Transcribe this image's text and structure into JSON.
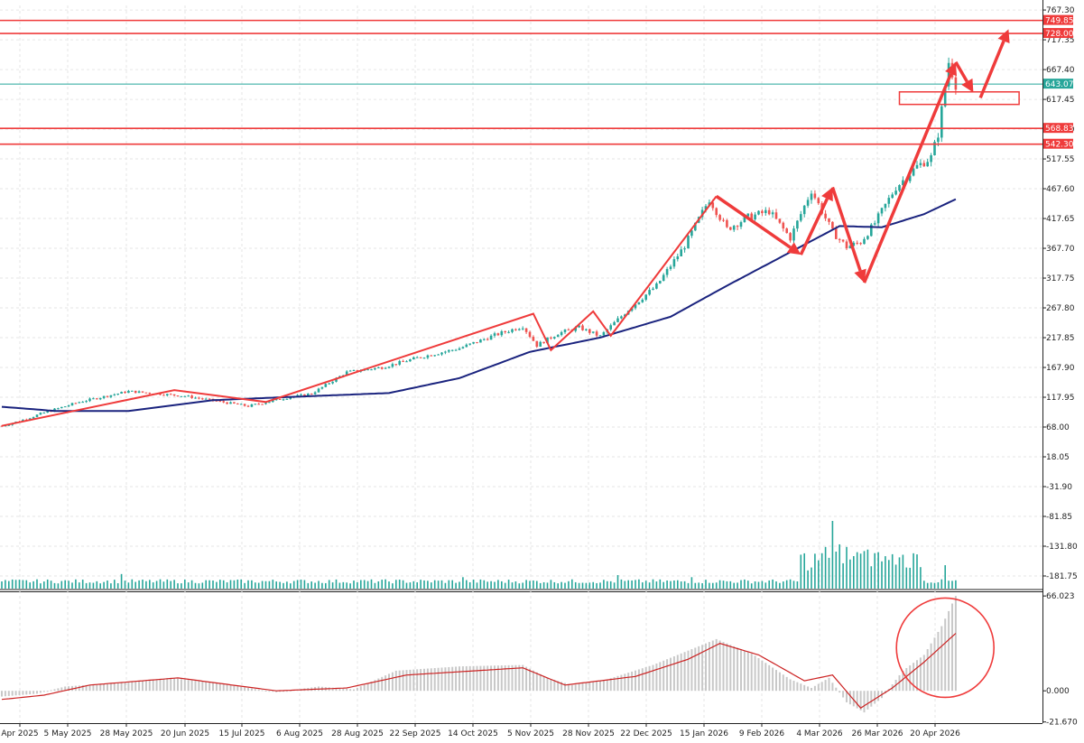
{
  "colors": {
    "background": "#ffffff",
    "grid": "#e6e6e6",
    "candle_up": "#26a69a",
    "candle_down": "#ef5350",
    "moving_average": "#1a237e",
    "annotation": "#ef3b3b",
    "price_line": "#26a69a",
    "volume": "#26a69a",
    "macd_hist": "#c8c8c8",
    "macd_signal": "#cc2222",
    "axis_text": "#222222"
  },
  "chart_data": [
    {
      "type": "candlestick",
      "title": "",
      "xlabel": "",
      "ylabel": "",
      "ylim": [
        -206,
        775
      ],
      "grid": true,
      "y_ticks": [
        "767.30",
        "717.35",
        "667.40",
        "617.45",
        "567.50",
        "517.55",
        "467.60",
        "417.65",
        "367.70",
        "317.75",
        "267.80",
        "217.85",
        "167.90",
        "117.95",
        "68.00",
        "18.05",
        "-31.90",
        "-81.85",
        "-131.80",
        "-181.75"
      ],
      "x_ticks": [
        "Apr 2025",
        "5 May 2025",
        "28 May 2025",
        "20 Jun 2025",
        "15 Jul 2025",
        "6 Aug 2025",
        "28 Aug 2025",
        "22 Sep 2025",
        "14 Oct 2025",
        "5 Nov 2025",
        "28 Nov 2025",
        "22 Dec 2025",
        "15 Jan 2026",
        "9 Feb 2026",
        "4 Mar 2026",
        "26 Mar 2026",
        "20 Apr 2026"
      ],
      "price_anchors": [
        {
          "i": 0,
          "v": 70
        },
        {
          "i": 5,
          "v": 78
        },
        {
          "i": 12,
          "v": 92
        },
        {
          "i": 22,
          "v": 110
        },
        {
          "i": 36,
          "v": 128
        },
        {
          "i": 52,
          "v": 120
        },
        {
          "i": 70,
          "v": 103
        },
        {
          "i": 80,
          "v": 116
        },
        {
          "i": 88,
          "v": 124
        },
        {
          "i": 98,
          "v": 160
        },
        {
          "i": 108,
          "v": 168
        },
        {
          "i": 118,
          "v": 184
        },
        {
          "i": 130,
          "v": 200
        },
        {
          "i": 140,
          "v": 222
        },
        {
          "i": 148,
          "v": 237
        },
        {
          "i": 152,
          "v": 205
        },
        {
          "i": 158,
          "v": 225
        },
        {
          "i": 164,
          "v": 235
        },
        {
          "i": 170,
          "v": 220
        },
        {
          "i": 178,
          "v": 265
        },
        {
          "i": 186,
          "v": 305
        },
        {
          "i": 194,
          "v": 372
        },
        {
          "i": 201,
          "v": 450
        },
        {
          "i": 206,
          "v": 400
        },
        {
          "i": 212,
          "v": 420
        },
        {
          "i": 218,
          "v": 430
        },
        {
          "i": 224,
          "v": 385
        },
        {
          "i": 230,
          "v": 465
        },
        {
          "i": 236,
          "v": 395
        },
        {
          "i": 240,
          "v": 370
        },
        {
          "i": 244,
          "v": 378
        },
        {
          "i": 248,
          "v": 410
        },
        {
          "i": 254,
          "v": 470
        },
        {
          "i": 260,
          "v": 505
        },
        {
          "i": 264,
          "v": 520
        },
        {
          "i": 266,
          "v": 560
        },
        {
          "i": 268,
          "v": 640
        },
        {
          "i": 269,
          "v": 680
        },
        {
          "i": 271,
          "v": 643
        }
      ],
      "moving_average": [
        {
          "i": 0,
          "v": 102
        },
        {
          "i": 15,
          "v": 95
        },
        {
          "i": 36,
          "v": 95
        },
        {
          "i": 60,
          "v": 113
        },
        {
          "i": 80,
          "v": 118
        },
        {
          "i": 110,
          "v": 125
        },
        {
          "i": 130,
          "v": 150
        },
        {
          "i": 150,
          "v": 194
        },
        {
          "i": 170,
          "v": 218
        },
        {
          "i": 190,
          "v": 253
        },
        {
          "i": 206,
          "v": 305
        },
        {
          "i": 222,
          "v": 355
        },
        {
          "i": 238,
          "v": 405
        },
        {
          "i": 250,
          "v": 403
        },
        {
          "i": 262,
          "v": 425
        },
        {
          "i": 271,
          "v": 450
        }
      ],
      "horizontal_levels": [
        {
          "label": "749.85",
          "value": 749.85,
          "color": "#ef3b3b"
        },
        {
          "label": "728.00",
          "value": 728.0,
          "color": "#ef3b3b"
        },
        {
          "label": "643.07",
          "value": 643.07,
          "color": "#26a69a"
        },
        {
          "label": "568.83",
          "value": 568.83,
          "color": "#ef3b3b"
        },
        {
          "label": "542.30",
          "value": 542.3,
          "color": "#ef3b3b"
        }
      ],
      "trend_lines": [
        [
          {
            "i": 0,
            "v": 70
          },
          {
            "i": 49,
            "v": 130
          },
          {
            "i": 75,
            "v": 110
          },
          {
            "i": 151,
            "v": 258
          },
          {
            "i": 156,
            "v": 197
          },
          {
            "i": 168,
            "v": 262
          },
          {
            "i": 173,
            "v": 221
          },
          {
            "i": 203,
            "v": 455
          }
        ]
      ],
      "arrows": [
        [
          {
            "i": 203,
            "v": 455
          },
          {
            "i": 227,
            "v": 357
          }
        ],
        [
          {
            "i": 227,
            "v": 357
          },
          {
            "i": 236,
            "v": 470
          }
        ],
        [
          {
            "i": 236,
            "v": 470
          },
          {
            "i": 245,
            "v": 310
          }
        ],
        [
          {
            "i": 245,
            "v": 310
          },
          {
            "i": 271,
            "v": 680
          }
        ],
        [
          {
            "i": 271,
            "v": 680
          },
          {
            "i": 276,
            "v": 629
          }
        ],
        [
          {
            "i": 278,
            "v": 620
          },
          {
            "i": 286,
            "v": 735
          }
        ]
      ],
      "zone": {
        "i0": 255,
        "i1": 289,
        "v0": 609,
        "v1": 630
      },
      "volume": {
        "n": 272,
        "max": 130,
        "bars": [
          {
            "i": 34,
            "v": 28
          },
          {
            "i": 131,
            "v": 22
          },
          {
            "i": 175,
            "v": 26
          },
          {
            "i": 196,
            "v": 22
          },
          {
            "i": 229,
            "v": 35
          },
          {
            "i": 234,
            "v": 80
          },
          {
            "i": 236,
            "v": 130
          },
          {
            "i": 238,
            "v": 85
          },
          {
            "i": 240,
            "v": 80
          },
          {
            "i": 243,
            "v": 70
          },
          {
            "i": 246,
            "v": 75
          },
          {
            "i": 249,
            "v": 70
          },
          {
            "i": 252,
            "v": 55
          },
          {
            "i": 255,
            "v": 60
          },
          {
            "i": 258,
            "v": 40
          },
          {
            "i": 268,
            "v": 45
          }
        ]
      }
    },
    {
      "type": "bar",
      "title": "",
      "ylim": [
        -22.5,
        68
      ],
      "y_ticks": [
        "66.023",
        "0.000",
        "-21.670"
      ],
      "histogram_anchors": [
        {
          "i": 0,
          "v": -4
        },
        {
          "i": 10,
          "v": -2
        },
        {
          "i": 18,
          "v": 3
        },
        {
          "i": 30,
          "v": 5
        },
        {
          "i": 48,
          "v": 9
        },
        {
          "i": 62,
          "v": 5
        },
        {
          "i": 78,
          "v": -1
        },
        {
          "i": 90,
          "v": 3
        },
        {
          "i": 100,
          "v": 1
        },
        {
          "i": 112,
          "v": 14
        },
        {
          "i": 130,
          "v": 17
        },
        {
          "i": 148,
          "v": 18
        },
        {
          "i": 155,
          "v": 9
        },
        {
          "i": 162,
          "v": 4
        },
        {
          "i": 172,
          "v": 8
        },
        {
          "i": 185,
          "v": 18
        },
        {
          "i": 195,
          "v": 28
        },
        {
          "i": 203,
          "v": 36
        },
        {
          "i": 213,
          "v": 26
        },
        {
          "i": 224,
          "v": 8
        },
        {
          "i": 230,
          "v": 2
        },
        {
          "i": 235,
          "v": 9
        },
        {
          "i": 240,
          "v": -8
        },
        {
          "i": 245,
          "v": -15
        },
        {
          "i": 250,
          "v": -5
        },
        {
          "i": 256,
          "v": 14
        },
        {
          "i": 262,
          "v": 25
        },
        {
          "i": 267,
          "v": 45
        },
        {
          "i": 271,
          "v": 66
        }
      ],
      "signal_anchors": [
        {
          "i": 0,
          "v": -6
        },
        {
          "i": 12,
          "v": -3
        },
        {
          "i": 25,
          "v": 4
        },
        {
          "i": 50,
          "v": 9
        },
        {
          "i": 78,
          "v": 0
        },
        {
          "i": 98,
          "v": 2
        },
        {
          "i": 115,
          "v": 11
        },
        {
          "i": 148,
          "v": 16
        },
        {
          "i": 160,
          "v": 4
        },
        {
          "i": 180,
          "v": 10
        },
        {
          "i": 195,
          "v": 22
        },
        {
          "i": 204,
          "v": 33
        },
        {
          "i": 215,
          "v": 25
        },
        {
          "i": 228,
          "v": 7
        },
        {
          "i": 236,
          "v": 11
        },
        {
          "i": 244,
          "v": -12
        },
        {
          "i": 253,
          "v": 2
        },
        {
          "i": 262,
          "v": 20
        },
        {
          "i": 271,
          "v": 40
        }
      ],
      "circle": {
        "i": 268,
        "v": 30
      }
    }
  ]
}
